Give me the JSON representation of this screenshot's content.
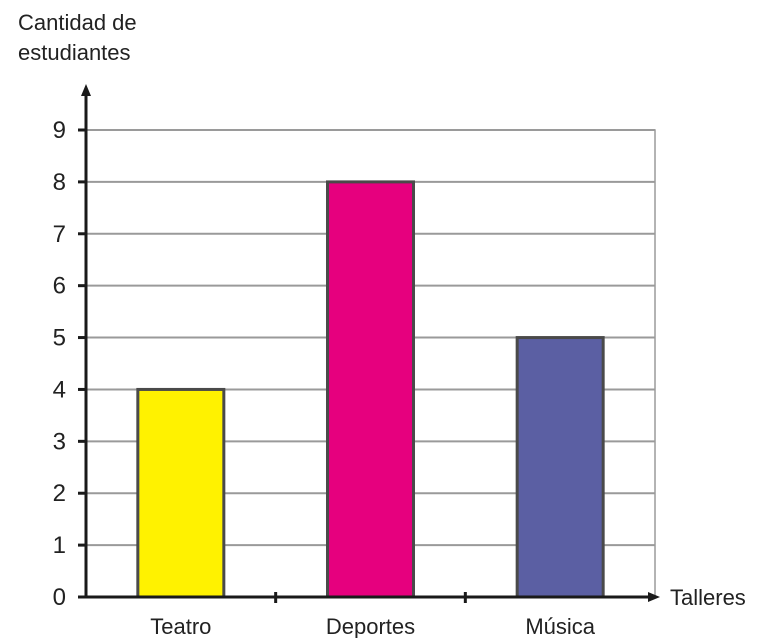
{
  "chart_data": {
    "type": "bar",
    "ylabel_lines": [
      "Cantidad de",
      "estudiantes"
    ],
    "xlabel": "Talleres",
    "categories": [
      "Teatro",
      "Deportes",
      "Música"
    ],
    "values": [
      4,
      8,
      5
    ],
    "colors": [
      "#fff200",
      "#e6007e",
      "#5b5fa3"
    ],
    "bar_border_color": "#4a4a4a",
    "ylim": [
      0,
      9
    ],
    "yticks": [
      "0",
      "1",
      "2",
      "3",
      "4",
      "5",
      "6",
      "7",
      "8",
      "9"
    ],
    "grid": true
  }
}
